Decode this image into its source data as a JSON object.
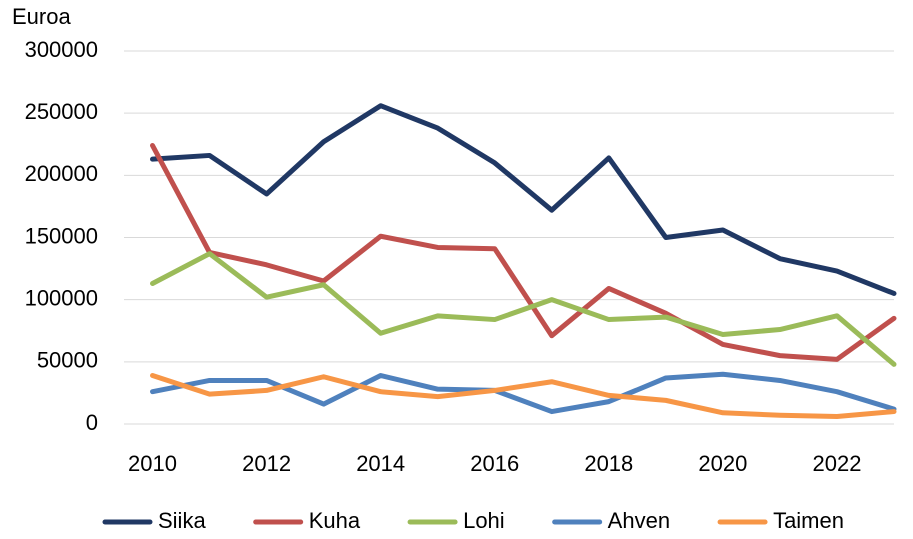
{
  "chart_data": {
    "type": "line",
    "y_label": "Euroa",
    "x": [
      2010,
      2011,
      2012,
      2013,
      2014,
      2015,
      2016,
      2017,
      2018,
      2019,
      2020,
      2021,
      2022,
      2023
    ],
    "xlim": [
      2009.5,
      2023
    ],
    "xticks": [
      2010,
      2012,
      2014,
      2016,
      2018,
      2020,
      2022
    ],
    "ylim": [
      0,
      300000
    ],
    "yticks": [
      0,
      50000,
      100000,
      150000,
      200000,
      250000,
      300000
    ],
    "grid": true,
    "legend": "bottom",
    "series": [
      {
        "name": "Siika",
        "color": "#203864",
        "values": [
          213000,
          216000,
          185000,
          227000,
          256000,
          238000,
          210000,
          172000,
          214000,
          150000,
          156000,
          133000,
          123000,
          105000
        ]
      },
      {
        "name": "Kuha",
        "color": "#c0504d",
        "values": [
          224000,
          138000,
          128000,
          115000,
          151000,
          142000,
          141000,
          71000,
          109000,
          89000,
          64000,
          55000,
          52000,
          85000
        ]
      },
      {
        "name": "Lohi",
        "color": "#9bbb59",
        "values": [
          113000,
          137000,
          102000,
          112000,
          73000,
          87000,
          84000,
          100000,
          84000,
          86000,
          72000,
          76000,
          87000,
          48000
        ]
      },
      {
        "name": "Ahven",
        "color": "#4f81bd",
        "values": [
          26000,
          35000,
          35000,
          16000,
          39000,
          28000,
          27000,
          10000,
          18000,
          37000,
          40000,
          35000,
          26000,
          12000
        ]
      },
      {
        "name": "Taimen",
        "color": "#f79646",
        "values": [
          39000,
          24000,
          27000,
          38000,
          26000,
          22000,
          27000,
          34000,
          23000,
          19000,
          9000,
          7000,
          6000,
          10000
        ]
      }
    ]
  }
}
